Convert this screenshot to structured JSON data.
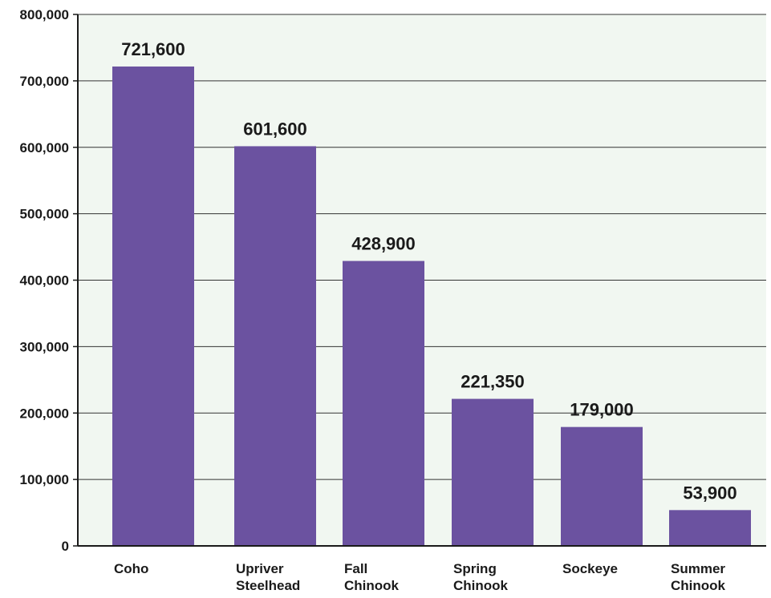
{
  "chart_data": {
    "type": "bar",
    "categories": [
      "Coho",
      "Upriver Steelhead",
      "Fall Chinook",
      "Spring Chinook",
      "Sockeye",
      "Summer Chinook"
    ],
    "category_lines": [
      [
        "Coho"
      ],
      [
        "Upriver",
        "Steelhead"
      ],
      [
        "Fall",
        "Chinook"
      ],
      [
        "Spring",
        "Chinook"
      ],
      [
        "Sockeye"
      ],
      [
        "Summer",
        "Chinook"
      ]
    ],
    "values": [
      721600,
      601600,
      428900,
      221350,
      179000,
      53900
    ],
    "value_labels": [
      "721,600",
      "601,600",
      "428,900",
      "221,350",
      "179,000",
      "53,900"
    ],
    "yticks": [
      0,
      100000,
      200000,
      300000,
      400000,
      500000,
      600000,
      700000,
      800000
    ],
    "ytick_labels": [
      "0",
      "100,000",
      "200,000",
      "300,000",
      "400,000",
      "500,000",
      "600,000",
      "700,000",
      "800,000"
    ],
    "ylim": [
      0,
      800000
    ],
    "title": "",
    "xlabel": "",
    "ylabel": "",
    "grid": true,
    "legend": "none",
    "bar_color": "#6b52a0",
    "plot_background": "#f1f7f1"
  }
}
